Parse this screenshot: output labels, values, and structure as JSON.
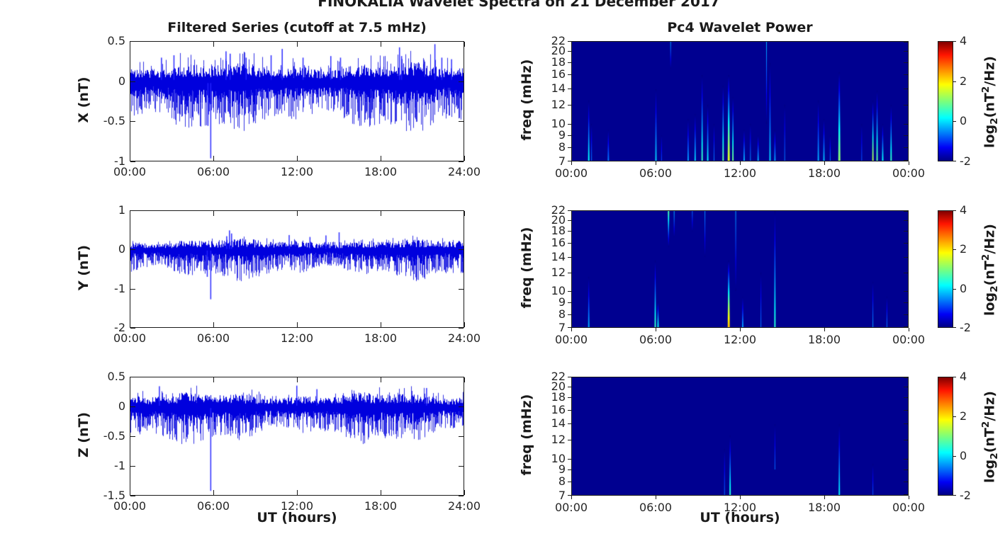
{
  "chart_data": {
    "figure_title": "FINOKALIA Wavelet Spectra on 21 December 2017",
    "type": [
      "line",
      "heatmap"
    ],
    "colors": {
      "background": "#FFFFFF",
      "signal_line": "#0000DD",
      "signal_spike": "#2222FF",
      "spectrogram_background": "#000090",
      "axis": "#1A1A1A",
      "text": "#262626",
      "colormap": "jet"
    },
    "left_column": {
      "title": "Filtered Series (cutoff at 7.5 mHz)",
      "xlabel": "UT (hours)",
      "x_hours": [
        0,
        24
      ],
      "xtick_labels": [
        "00:00",
        "06:00",
        "12:00",
        "18:00",
        "24:00"
      ],
      "xtick_values": [
        0,
        6,
        12,
        18,
        24
      ],
      "panels": [
        {
          "component": "X",
          "ylabel": "X (nT)",
          "ylim": [
            -1,
            0.5
          ],
          "ytick_labels": [
            "0.5",
            "0",
            "-0.5",
            "-1"
          ],
          "ytick_values": [
            0.5,
            0,
            -0.5,
            -1
          ],
          "seed": 11,
          "noise": {
            "band_top": [
              0.05,
              0.19
            ],
            "band_bot": [
              -0.27,
              -0.09
            ],
            "down_spikes": {
              "prob": 0.5,
              "range": [
                -0.3,
                -0.52
              ]
            },
            "up_spikes": {
              "prob": 0.12,
              "range": [
                0.2,
                0.33
              ]
            }
          },
          "features": [
            {
              "t": 2.2,
              "y": 0.3
            },
            {
              "t": 3.1,
              "y": 0.33
            },
            {
              "t": 5.55,
              "y": -0.56
            },
            {
              "t": 5.75,
              "y": -0.97
            },
            {
              "t": 6.85,
              "y": 0.38
            },
            {
              "t": 7.15,
              "y": 0.35
            },
            {
              "t": 8.3,
              "y": 0.3
            },
            {
              "t": 10.1,
              "y": 0.33
            },
            {
              "t": 10.9,
              "y": 0.41
            },
            {
              "t": 12.4,
              "y": 0.3
            },
            {
              "t": 14.4,
              "y": 0.32
            },
            {
              "t": 15.1,
              "y": 0.3
            },
            {
              "t": 19.35,
              "y": 0.43
            },
            {
              "t": 19.5,
              "y": 0.32
            },
            {
              "t": 21.9,
              "y": 0.47
            },
            {
              "t": 22.4,
              "y": 0.3
            },
            {
              "t": 23.1,
              "y": 0.28
            }
          ]
        },
        {
          "component": "Y",
          "ylabel": "Y (nT)",
          "ylim": [
            -2,
            1
          ],
          "ytick_labels": [
            "1",
            "0",
            "-1",
            "-2"
          ],
          "ytick_values": [
            1,
            0,
            -1,
            -2
          ],
          "seed": 23,
          "noise": {
            "band_top": [
              0.05,
              0.22
            ],
            "band_bot": [
              -0.32,
              -0.1
            ],
            "down_spikes": {
              "prob": 0.55,
              "range": [
                -0.38,
                -0.62
              ]
            },
            "up_spikes": {
              "prob": 0.08,
              "range": [
                0.2,
                0.3
              ]
            }
          },
          "features": [
            {
              "t": 5.5,
              "y": -0.7
            },
            {
              "t": 5.75,
              "y": -1.28
            },
            {
              "t": 6.9,
              "y": 0.35
            },
            {
              "t": 7.1,
              "y": 0.5
            },
            {
              "t": 7.25,
              "y": 0.42
            },
            {
              "t": 11.4,
              "y": 0.38
            },
            {
              "t": 12.9,
              "y": 0.33
            },
            {
              "t": 14.05,
              "y": 0.37
            },
            {
              "t": 15.0,
              "y": 0.45
            }
          ]
        },
        {
          "component": "Z",
          "ylabel": "Z (nT)",
          "ylim": [
            -1.5,
            0.5
          ],
          "ytick_labels": [
            "0.5",
            "0",
            "-0.5",
            "-1",
            "-1.5"
          ],
          "ytick_values": [
            0.5,
            0,
            -0.5,
            -1,
            -1.5
          ],
          "seed": 37,
          "noise": {
            "band_top": [
              0.05,
              0.19
            ],
            "band_bot": [
              -0.26,
              -0.09
            ],
            "down_spikes": {
              "prob": 0.5,
              "range": [
                -0.3,
                -0.5
              ]
            },
            "up_spikes": {
              "prob": 0.1,
              "range": [
                0.18,
                0.3
              ]
            }
          },
          "features": [
            {
              "t": 2.05,
              "y": 0.35
            },
            {
              "t": 5.75,
              "y": -1.43
            },
            {
              "t": 11.95,
              "y": 0.36
            },
            {
              "t": 13.4,
              "y": 0.3
            },
            {
              "t": 21.3,
              "y": 0.32
            }
          ]
        }
      ]
    },
    "right_column": {
      "title": "Pc4 Wavelet Power",
      "xlabel": "UT (hours)",
      "x_hours": [
        0,
        24
      ],
      "xtick_labels": [
        "00:00",
        "06:00",
        "12:00",
        "18:00",
        "00:00"
      ],
      "xtick_values": [
        0,
        6,
        12,
        18,
        24
      ],
      "ylabel": "freq (mHz)",
      "yscale": "log",
      "flim": [
        7,
        22
      ],
      "ytick_labels": [
        "22",
        "20",
        "18",
        "16",
        "14",
        "12",
        "10",
        "9",
        "8",
        "7"
      ],
      "ytick_values": [
        22,
        20,
        18,
        16,
        14,
        12,
        10,
        9,
        8,
        7
      ],
      "background_power": -2,
      "colorbar": {
        "lim": [
          -2,
          4
        ],
        "tick_labels": [
          "4",
          "2",
          "0",
          "-2"
        ],
        "tick_values": [
          4,
          2,
          0,
          -2
        ],
        "label_parts": [
          "log",
          "2",
          "(nT",
          "2",
          "/Hz)"
        ]
      },
      "panels": [
        {
          "component": "X",
          "events": [
            {
              "t": 1.2,
              "f": [
                7,
                12.5
              ],
              "p": 0.3,
              "w": 2
            },
            {
              "t": 1.4,
              "f": [
                7,
                10
              ],
              "p": -0.5,
              "w": 1
            },
            {
              "t": 2.6,
              "f": [
                7,
                9.5
              ],
              "p": -0.5,
              "w": 2
            },
            {
              "t": 6.0,
              "f": [
                7,
                14
              ],
              "p": 0.0,
              "w": 2
            },
            {
              "t": 6.4,
              "f": [
                7,
                9
              ],
              "p": -0.8,
              "w": 1
            },
            {
              "t": 7.05,
              "f": [
                17,
                22
              ],
              "p": -0.3,
              "w": 1,
              "bright": "high"
            },
            {
              "t": 8.3,
              "f": [
                7,
                10.5
              ],
              "p": -0.3,
              "w": 2
            },
            {
              "t": 8.8,
              "f": [
                7,
                11
              ],
              "p": 0.0,
              "w": 2
            },
            {
              "t": 9.3,
              "f": [
                7,
                16
              ],
              "p": 0.6,
              "w": 2
            },
            {
              "t": 9.7,
              "f": [
                7,
                12
              ],
              "p": 0.2,
              "w": 2
            },
            {
              "t": 10.15,
              "f": [
                7,
                10
              ],
              "p": -0.5,
              "w": 1
            },
            {
              "t": 10.8,
              "f": [
                7,
                14.5
              ],
              "p": 0.8,
              "w": 2
            },
            {
              "t": 11.2,
              "f": [
                7,
                16
              ],
              "p": 1.6,
              "w": 3
            },
            {
              "t": 11.5,
              "f": [
                7,
                13
              ],
              "p": 0.9,
              "w": 2
            },
            {
              "t": 12.3,
              "f": [
                7,
                9.5
              ],
              "p": -0.2,
              "w": 2
            },
            {
              "t": 12.75,
              "f": [
                7,
                10
              ],
              "p": -0.4,
              "w": 1
            },
            {
              "t": 13.3,
              "f": [
                7,
                9
              ],
              "p": -0.2,
              "w": 2
            },
            {
              "t": 13.9,
              "f": [
                10,
                22
              ],
              "p": -0.2,
              "w": 1,
              "bright": "high"
            },
            {
              "t": 14.15,
              "f": [
                7,
                18
              ],
              "p": 0.0,
              "w": 2
            },
            {
              "t": 14.5,
              "f": [
                7,
                9.5
              ],
              "p": -0.3,
              "w": 2
            },
            {
              "t": 15.2,
              "f": [
                7,
                12
              ],
              "p": -0.5,
              "w": 1
            },
            {
              "t": 17.6,
              "f": [
                7,
                12.5
              ],
              "p": -0.2,
              "w": 2
            },
            {
              "t": 18.0,
              "f": [
                7,
                10.5
              ],
              "p": -0.1,
              "w": 2
            },
            {
              "t": 18.45,
              "f": [
                7,
                9
              ],
              "p": -0.5,
              "w": 1
            },
            {
              "t": 19.1,
              "f": [
                7,
                16.5
              ],
              "p": 1.1,
              "w": 3
            },
            {
              "t": 20.7,
              "f": [
                7,
                10
              ],
              "p": -0.7,
              "w": 1
            },
            {
              "t": 21.5,
              "f": [
                7,
                12.5
              ],
              "p": 1.3,
              "w": 2
            },
            {
              "t": 21.8,
              "f": [
                7,
                13.8
              ],
              "p": 0.8,
              "w": 2
            },
            {
              "t": 22.2,
              "f": [
                7,
                10
              ],
              "p": 0.3,
              "w": 2
            },
            {
              "t": 22.8,
              "f": [
                7,
                12
              ],
              "p": 0.6,
              "w": 2
            }
          ]
        },
        {
          "component": "Y",
          "events": [
            {
              "t": 1.2,
              "f": [
                7,
                11.5
              ],
              "p": -0.2,
              "w": 2
            },
            {
              "t": 5.95,
              "f": [
                7,
                13.5
              ],
              "p": 0.6,
              "w": 2
            },
            {
              "t": 6.15,
              "f": [
                7,
                9
              ],
              "p": 0.4,
              "w": 2
            },
            {
              "t": 6.9,
              "f": [
                15.5,
                22
              ],
              "p": 0.7,
              "w": 2,
              "bright": "high"
            },
            {
              "t": 7.3,
              "f": [
                17,
                22
              ],
              "p": -0.2,
              "w": 1,
              "bright": "high"
            },
            {
              "t": 8.6,
              "f": [
                18,
                22
              ],
              "p": -0.6,
              "w": 1,
              "bright": "high"
            },
            {
              "t": 9.5,
              "f": [
                14,
                22
              ],
              "p": -0.4,
              "w": 1,
              "bright": "high"
            },
            {
              "t": 11.2,
              "f": [
                7,
                13.5
              ],
              "p": 2.1,
              "w": 3
            },
            {
              "t": 11.7,
              "f": [
                10,
                22
              ],
              "p": -0.3,
              "w": 1,
              "bright": "high"
            },
            {
              "t": 12.2,
              "f": [
                7,
                9.5
              ],
              "p": -0.3,
              "w": 2
            },
            {
              "t": 13.5,
              "f": [
                7,
                12
              ],
              "p": -0.5,
              "w": 1
            },
            {
              "t": 14.5,
              "f": [
                7,
                22
              ],
              "p": 0.5,
              "w": 2
            },
            {
              "t": 21.5,
              "f": [
                7,
                11
              ],
              "p": -0.3,
              "w": 1
            },
            {
              "t": 22.5,
              "f": [
                7,
                9.5
              ],
              "p": -0.5,
              "w": 1
            }
          ]
        },
        {
          "component": "Z",
          "events": [
            {
              "t": 10.9,
              "f": [
                7,
                11
              ],
              "p": -0.6,
              "w": 1
            },
            {
              "t": 11.3,
              "f": [
                7,
                12.5
              ],
              "p": 0.5,
              "w": 2
            },
            {
              "t": 14.5,
              "f": [
                9,
                14
              ],
              "p": -0.6,
              "w": 1
            },
            {
              "t": 19.1,
              "f": [
                7,
                14
              ],
              "p": 0.2,
              "w": 2
            },
            {
              "t": 21.5,
              "f": [
                7,
                9.5
              ],
              "p": -0.7,
              "w": 1
            }
          ]
        }
      ]
    }
  }
}
